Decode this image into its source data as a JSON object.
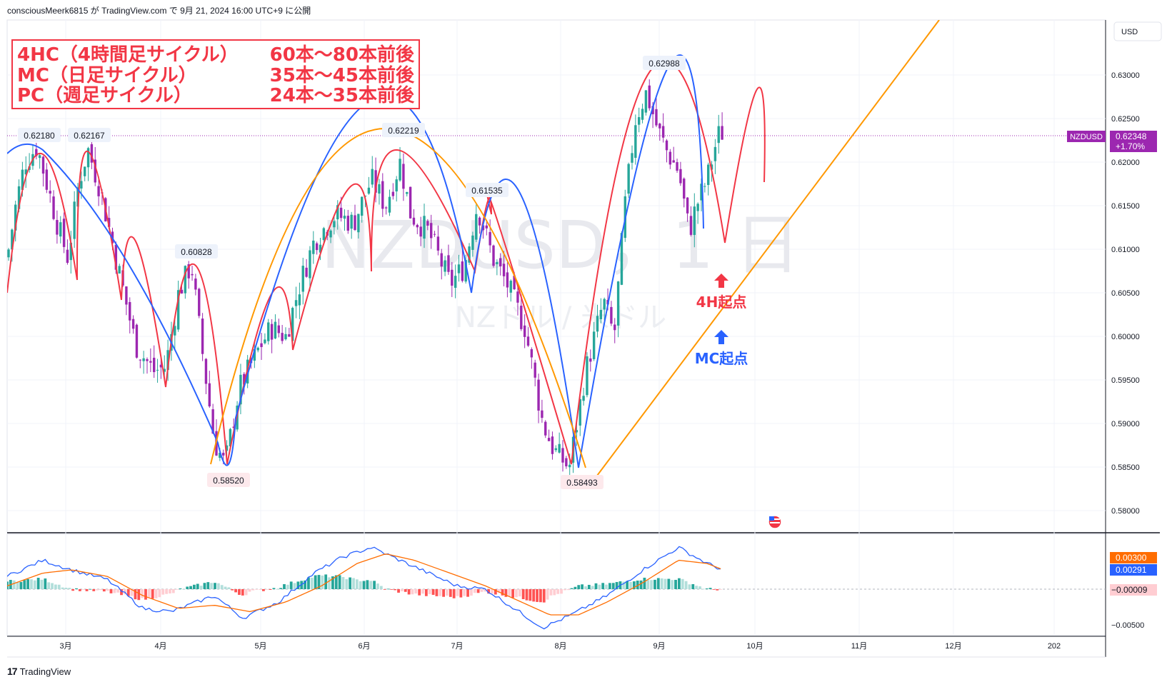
{
  "header": {
    "text": "consciousMeerk6815 が TradingView.com で 9月 21, 2024 16:00 UTC+9 に公開"
  },
  "currency": "USD",
  "watermark": {
    "symbol": "NZDUSD，1 日",
    "name": "NZドル / 米ドル"
  },
  "cycle_box": {
    "lines": [
      {
        "label": "4HC（4時間足サイクル）",
        "value": "60本〜80本前後"
      },
      {
        "label": "MC（日足サイクル）",
        "value": "35本〜45本前後"
      },
      {
        "label": "PC（週足サイクル）",
        "value": "24本〜35本前後"
      }
    ]
  },
  "annotations": {
    "h4_start": "4H起点",
    "mc_start": "MC起点",
    "peaks": [
      "0.62180",
      "0.62167",
      "0.60828",
      "0.58520",
      "0.62219",
      "0.61535",
      "0.58493",
      "0.62988"
    ]
  },
  "price_axis": {
    "ticks": [
      "0.63000",
      "0.62500",
      "0.62000",
      "0.61500",
      "0.61000",
      "0.60500",
      "0.60000",
      "0.59500",
      "0.59000",
      "0.58500",
      "0.58000"
    ],
    "symbol_tag": "NZDUSD",
    "last_price": "0.62348",
    "change": "+1.70%"
  },
  "macd_axis": {
    "ticks": [
      "0.00300",
      "0.00291",
      "−0.00009",
      "−0.00500"
    ],
    "signal_color": "#ff6d00",
    "macd_color": "#2962ff",
    "hist_color_label": "-0.00009"
  },
  "time_axis": {
    "labels": [
      "3月",
      "4月",
      "5月",
      "6月",
      "7月",
      "8月",
      "9月",
      "10月",
      "11月",
      "12月",
      "202"
    ]
  },
  "colors": {
    "up": "#26a69a",
    "down": "#9c27b0",
    "red_cycle": "#f23645",
    "blue_cycle": "#2962ff",
    "orange_cycle": "#ff9800",
    "symbol_tag_bg": "#9c27b0"
  },
  "brand": {
    "logo": "17",
    "name": "TradingView"
  },
  "chart_data": {
    "type": "candlestick",
    "symbol": "NZDUSD",
    "timeframe": "1D",
    "ylim": [
      0.578,
      0.634
    ],
    "x": [
      "2024-02-16",
      "2024-03-01",
      "2024-04-01",
      "2024-05-01",
      "2024-06-01",
      "2024-07-01",
      "2024-08-01",
      "2024-09-01",
      "2024-09-20"
    ],
    "close": [
      0.615,
      0.6175,
      0.598,
      0.5925,
      0.615,
      0.61,
      0.592,
      0.621,
      0.62348
    ],
    "swing_points": [
      {
        "label": "0.62180",
        "date": "2024-02-25",
        "price": 0.6218,
        "type": "high"
      },
      {
        "label": "0.62167",
        "date": "2024-03-08",
        "price": 0.62167,
        "type": "high"
      },
      {
        "label": "0.60828",
        "date": "2024-04-12",
        "price": 0.60828,
        "type": "high"
      },
      {
        "label": "0.58520",
        "date": "2024-04-19",
        "price": 0.5852,
        "type": "low"
      },
      {
        "label": "0.62219",
        "date": "2024-06-12",
        "price": 0.62219,
        "type": "high"
      },
      {
        "label": "0.61535",
        "date": "2024-07-12",
        "price": 0.61535,
        "type": "high"
      },
      {
        "label": "0.58493",
        "date": "2024-08-05",
        "price": 0.58493,
        "type": "low"
      },
      {
        "label": "0.62988",
        "date": "2024-08-30",
        "price": 0.62988,
        "type": "high"
      }
    ],
    "last_price": 0.62348,
    "change_pct": 1.7,
    "macd": {
      "macd": 0.00291,
      "signal": 0.003,
      "histogram": -9e-05
    }
  }
}
